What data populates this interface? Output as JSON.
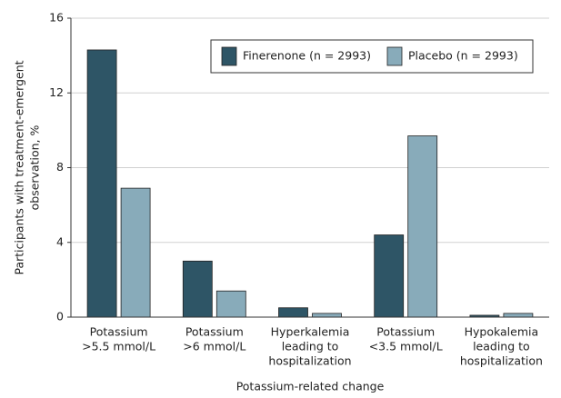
{
  "chart_data": {
    "type": "bar",
    "categories": [
      [
        "Potassium",
        ">5.5 mmol/L"
      ],
      [
        "Potassium",
        ">6 mmol/L"
      ],
      [
        "Hyperkalemia",
        "leading to",
        "hospitalization"
      ],
      [
        "Potassium",
        "<3.5 mmol/L"
      ],
      [
        "Hypokalemia",
        "leading to",
        "hospitalization"
      ]
    ],
    "series": [
      {
        "name": "Finerenone (n = 2993)",
        "color": "#2e5566",
        "values": [
          14.3,
          3.0,
          0.5,
          4.4,
          0.1
        ]
      },
      {
        "name": "Placebo (n = 2993)",
        "color": "#88abba",
        "values": [
          6.9,
          1.4,
          0.2,
          9.7,
          0.2
        ]
      }
    ],
    "ylabel": [
      "Participants with treatment-emergent",
      "observation, %"
    ],
    "xlabel": "Potassium-related change",
    "ylim": [
      0,
      16
    ],
    "yticks": [
      0,
      4,
      8,
      12,
      16
    ],
    "grid": true,
    "legend": "upper right"
  }
}
